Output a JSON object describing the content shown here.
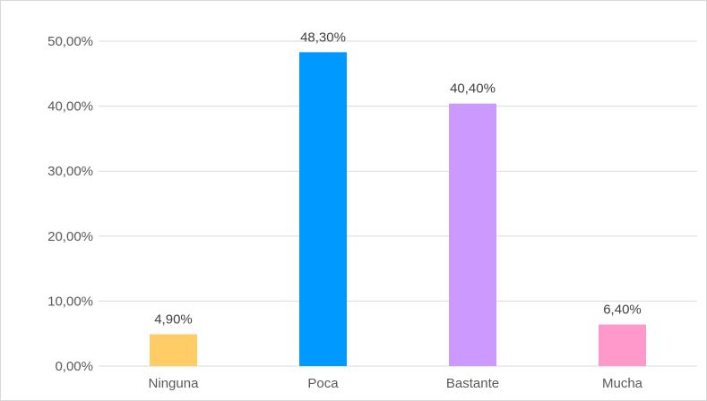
{
  "chart_data": {
    "type": "bar",
    "title": "",
    "xlabel": "",
    "ylabel": "",
    "categories": [
      "Ninguna",
      "Poca",
      "Bastante",
      "Mucha"
    ],
    "values": [
      4.9,
      48.3,
      40.4,
      6.4
    ],
    "value_labels": [
      "4,90%",
      "48,30%",
      "40,40%",
      "6,40%"
    ],
    "bar_colors": [
      "#ffcc66",
      "#0099ff",
      "#cc99ff",
      "#ff99cc"
    ],
    "ylim": [
      0,
      50
    ],
    "y_ticks": [
      0,
      10,
      20,
      30,
      40,
      50
    ],
    "y_tick_labels": [
      "0,00%",
      "10,00%",
      "20,00%",
      "30,00%",
      "40,00%",
      "50,00%"
    ],
    "grid": true,
    "grid_color": "#d9d9d9",
    "legend": "none"
  }
}
